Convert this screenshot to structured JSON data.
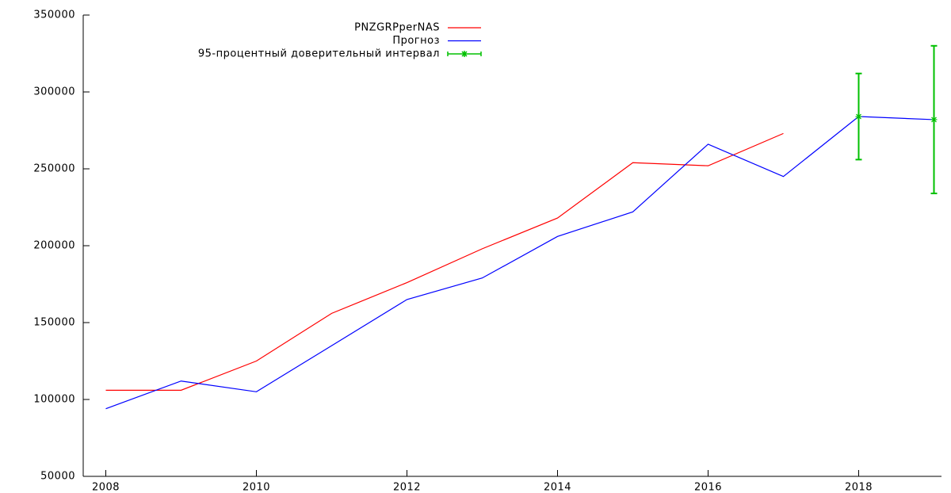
{
  "chart_data": {
    "type": "line",
    "xlim": [
      2007.7,
      2019.1
    ],
    "xticks": [
      2008,
      2010,
      2012,
      2014,
      2016,
      2018
    ],
    "ylim": [
      50000,
      350000
    ],
    "yticks": [
      50000,
      100000,
      150000,
      200000,
      250000,
      300000,
      350000
    ],
    "legend": "top",
    "series": [
      {
        "name": "PNZGRPperNAS",
        "color": "#ff0000",
        "x": [
          2008,
          2009,
          2010,
          2011,
          2012,
          2013,
          2014,
          2015,
          2016,
          2017
        ],
        "values": [
          106000,
          106000,
          125000,
          156000,
          176000,
          198000,
          218000,
          254000,
          252000,
          273000
        ]
      },
      {
        "name": "Прогноз",
        "color": "#0000ff",
        "x": [
          2008,
          2009,
          2010,
          2011,
          2012,
          2013,
          2014,
          2015,
          2016,
          2017,
          2018,
          2019
        ],
        "values": [
          94000,
          112000,
          105000,
          135000,
          165000,
          179000,
          206000,
          222000,
          266000,
          245000,
          284000,
          282000
        ]
      },
      {
        "name": "95-процентный доверительный интервал",
        "type": "errorbar",
        "color": "#00c000",
        "x": [
          2018,
          2019
        ],
        "values": [
          284000,
          282000
        ],
        "errors": [
          28000,
          48000
        ]
      }
    ]
  }
}
